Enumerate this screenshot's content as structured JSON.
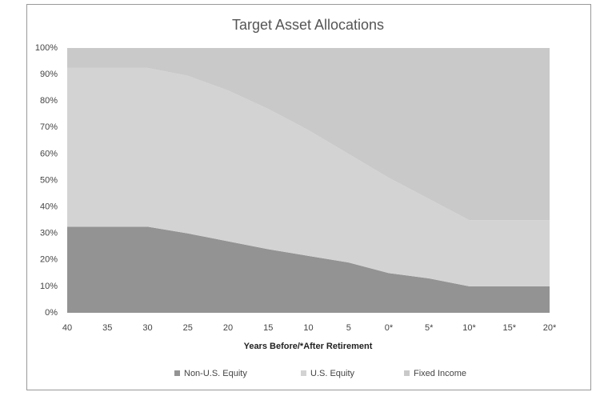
{
  "chart_data": {
    "type": "stacked-area",
    "title": "Target Asset Allocations",
    "x_label": "Years Before/*After Retirement",
    "categories": [
      "40",
      "35",
      "30",
      "25",
      "20",
      "15",
      "10",
      "5",
      "0*",
      "5*",
      "10*",
      "15*",
      "20*"
    ],
    "series": [
      {
        "name": "Non-U.S. Equity",
        "color": "#939393",
        "values": [
          32.5,
          32.5,
          32.5,
          30,
          27,
          24,
          21.5,
          19,
          15,
          13,
          10,
          10,
          10
        ]
      },
      {
        "name": "U.S. Equity",
        "color": "#d3d3d3",
        "values": [
          60,
          60,
          60,
          59.5,
          57,
          53,
          47.5,
          41,
          36,
          30,
          25,
          25,
          25
        ]
      },
      {
        "name": "Fixed Income",
        "color": "#c9c9c9",
        "values": [
          7.5,
          7.5,
          7.5,
          10.5,
          16,
          23,
          31,
          40,
          49,
          57,
          65,
          65,
          65
        ]
      }
    ],
    "ylim": [
      0,
      100
    ],
    "yticks": [
      {
        "value": 0,
        "label": "0%"
      },
      {
        "value": 10,
        "label": "10%"
      },
      {
        "value": 20,
        "label": "20%"
      },
      {
        "value": 30,
        "label": "30%"
      },
      {
        "value": 40,
        "label": "40%"
      },
      {
        "value": 50,
        "label": "50%"
      },
      {
        "value": 60,
        "label": "60%"
      },
      {
        "value": 70,
        "label": "70%"
      },
      {
        "value": 80,
        "label": "80%"
      },
      {
        "value": 90,
        "label": "90%"
      },
      {
        "value": 100,
        "label": "100%"
      }
    ],
    "grid": false,
    "legend": "bottom"
  }
}
